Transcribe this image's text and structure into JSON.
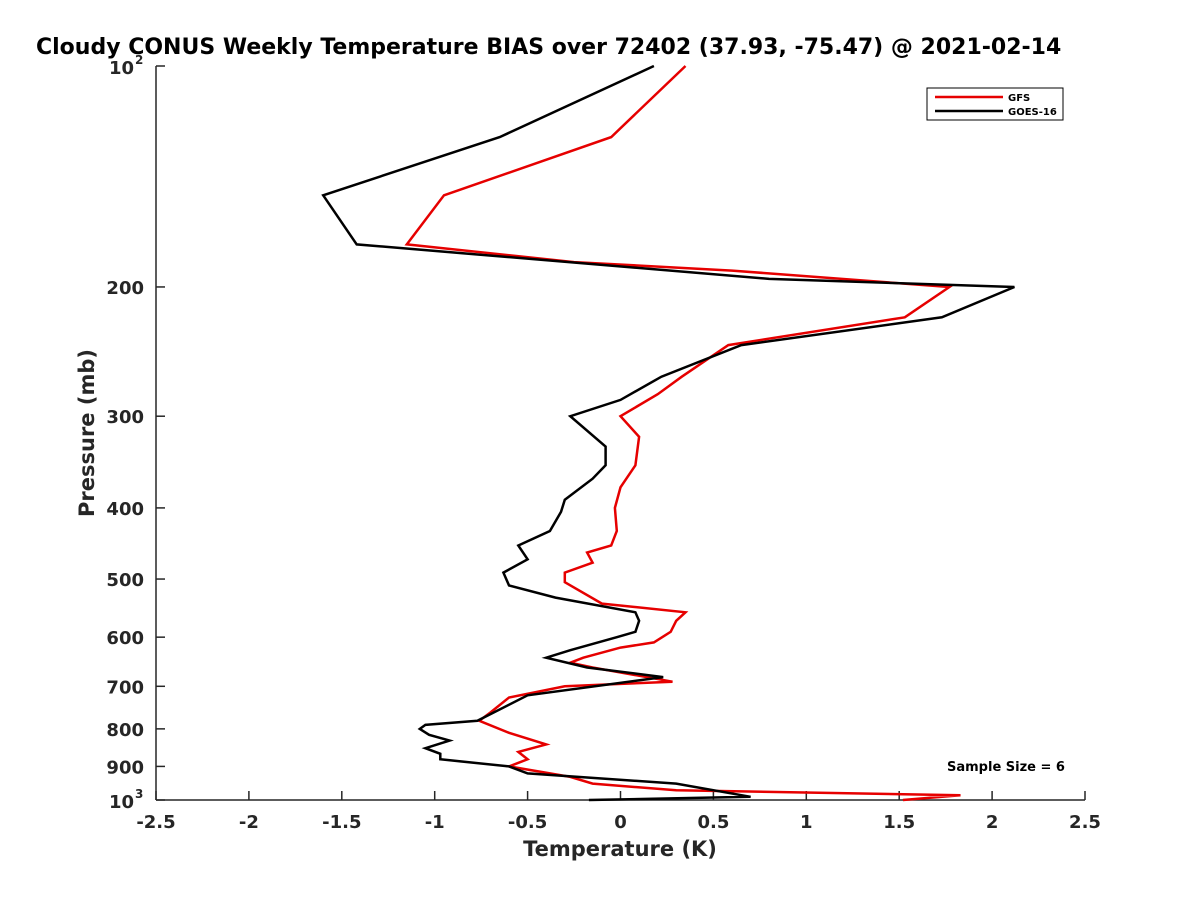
{
  "chart_data": {
    "type": "line",
    "title": "Cloudy CONUS Weekly Temperature BIAS over 72402 (37.93, -75.47) @ 2021-02-14",
    "xlabel": "Temperature (K)",
    "ylabel": "Pressure (mb)",
    "xlim": [
      -2.5,
      2.5
    ],
    "ylim": [
      100,
      1000
    ],
    "y_scale": "log",
    "y_reversed": true,
    "grid": false,
    "legend_position": "top-right",
    "x_ticks": [
      -2.5,
      -2,
      -1.5,
      -1,
      -0.5,
      0,
      0.5,
      1,
      1.5,
      2,
      2.5
    ],
    "x_tick_labels": [
      "-2.5",
      "-2",
      "-1.5",
      "-1",
      "-0.5",
      "0",
      "0.5",
      "1",
      "1.5",
      "2",
      "2.5"
    ],
    "y_ticks": [
      100,
      200,
      300,
      400,
      500,
      600,
      700,
      800,
      900,
      1000
    ],
    "y_tick_labels": [
      {
        "base": "10",
        "exp": "2"
      },
      {
        "base": "200",
        "exp": ""
      },
      {
        "base": "300",
        "exp": ""
      },
      {
        "base": "400",
        "exp": ""
      },
      {
        "base": "500",
        "exp": ""
      },
      {
        "base": "600",
        "exp": ""
      },
      {
        "base": "700",
        "exp": ""
      },
      {
        "base": "800",
        "exp": ""
      },
      {
        "base": "900",
        "exp": ""
      },
      {
        "base": "10",
        "exp": "3"
      }
    ],
    "annotation": "Sample Size = 6",
    "series": [
      {
        "name": "GFS",
        "color": "#e60000",
        "points": [
          [
            0.35,
            100
          ],
          [
            -0.05,
            125
          ],
          [
            -0.95,
            150
          ],
          [
            -1.15,
            175
          ],
          [
            -0.25,
            185
          ],
          [
            0.6,
            190
          ],
          [
            1.77,
            200
          ],
          [
            1.53,
            220
          ],
          [
            0.58,
            240
          ],
          [
            0.33,
            265
          ],
          [
            0.2,
            280
          ],
          [
            0,
            300
          ],
          [
            0.1,
            320
          ],
          [
            0.08,
            350
          ],
          [
            0,
            375
          ],
          [
            -0.03,
            400
          ],
          [
            -0.02,
            430
          ],
          [
            -0.05,
            450
          ],
          [
            -0.18,
            460
          ],
          [
            -0.15,
            475
          ],
          [
            -0.3,
            490
          ],
          [
            -0.3,
            505
          ],
          [
            -0.1,
            540
          ],
          [
            0.35,
            555
          ],
          [
            0.3,
            570
          ],
          [
            0.27,
            590
          ],
          [
            0.18,
            610
          ],
          [
            0.0,
            620
          ],
          [
            -0.2,
            640
          ],
          [
            -0.27,
            650
          ],
          [
            -0.15,
            660
          ],
          [
            0.28,
            690
          ],
          [
            -0.3,
            700
          ],
          [
            -0.6,
            725
          ],
          [
            -0.7,
            760
          ],
          [
            -0.76,
            780
          ],
          [
            -0.6,
            810
          ],
          [
            -0.4,
            840
          ],
          [
            -0.55,
            860
          ],
          [
            -0.5,
            880
          ],
          [
            -0.6,
            900
          ],
          [
            -0.27,
            930
          ],
          [
            -0.15,
            950
          ],
          [
            0.3,
            970
          ],
          [
            1.83,
            985
          ],
          [
            1.52,
            1000
          ]
        ]
      },
      {
        "name": "GOES-16",
        "color": "#000000",
        "points": [
          [
            0.18,
            100
          ],
          [
            -0.65,
            125
          ],
          [
            -1.6,
            150
          ],
          [
            -1.42,
            175
          ],
          [
            0.8,
            195
          ],
          [
            2.12,
            200
          ],
          [
            1.73,
            220
          ],
          [
            0.65,
            240
          ],
          [
            0.22,
            265
          ],
          [
            0,
            285
          ],
          [
            -0.27,
            300
          ],
          [
            -0.08,
            330
          ],
          [
            -0.08,
            350
          ],
          [
            -0.15,
            365
          ],
          [
            -0.3,
            390
          ],
          [
            -0.32,
            405
          ],
          [
            -0.38,
            430
          ],
          [
            -0.55,
            450
          ],
          [
            -0.5,
            470
          ],
          [
            -0.63,
            490
          ],
          [
            -0.6,
            510
          ],
          [
            -0.35,
            530
          ],
          [
            0.08,
            555
          ],
          [
            0.1,
            570
          ],
          [
            0.08,
            590
          ],
          [
            -0.02,
            600
          ],
          [
            -0.27,
            625
          ],
          [
            -0.4,
            640
          ],
          [
            -0.18,
            660
          ],
          [
            0.23,
            680
          ],
          [
            -0.5,
            720
          ],
          [
            -0.77,
            780
          ],
          [
            -1.05,
            790
          ],
          [
            -1.08,
            800
          ],
          [
            -1.03,
            815
          ],
          [
            -0.92,
            830
          ],
          [
            -1.05,
            850
          ],
          [
            -0.97,
            865
          ],
          [
            -0.97,
            880
          ],
          [
            -0.6,
            900
          ],
          [
            -0.5,
            920
          ],
          [
            0.3,
            950
          ],
          [
            0.7,
            990
          ],
          [
            -0.17,
            1000
          ]
        ]
      }
    ]
  }
}
